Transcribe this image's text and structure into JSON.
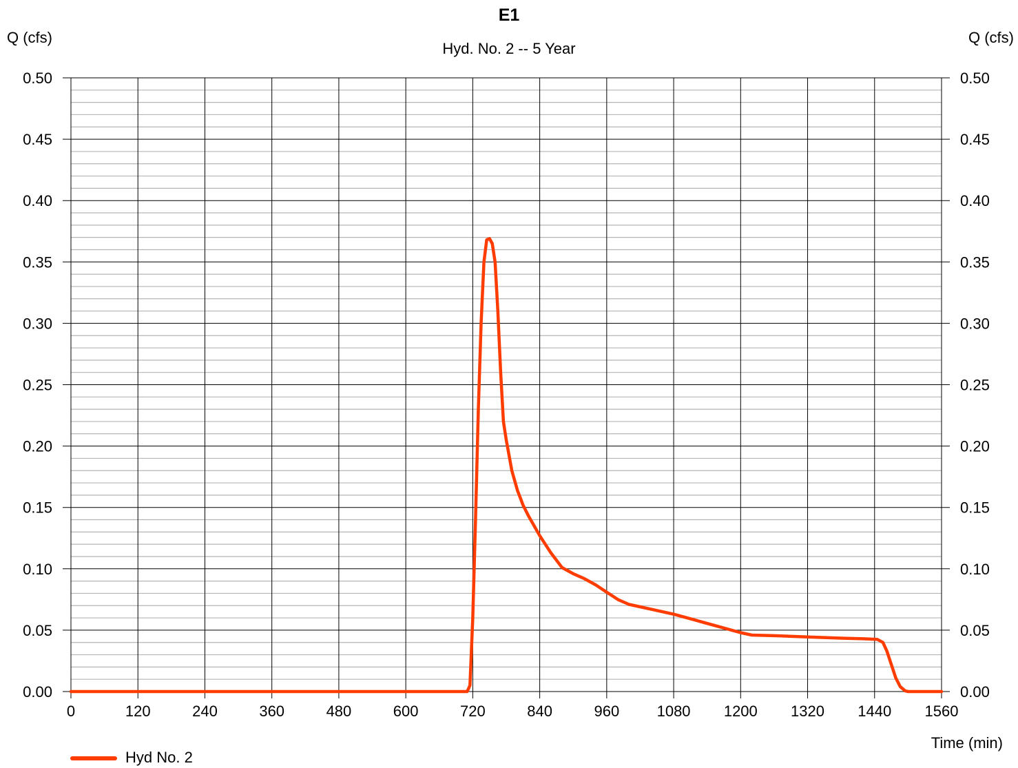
{
  "chart_data": {
    "type": "line",
    "title": "E1",
    "subtitle": "Hyd. No. 2 -- 5 Year",
    "ylabel_left": "Q (cfs)",
    "ylabel_right": "Q (cfs)",
    "xlabel": "Time (min)",
    "xlim": [
      0,
      1560
    ],
    "ylim": [
      0,
      0.5
    ],
    "x_ticks": [
      "0",
      "120",
      "240",
      "360",
      "480",
      "600",
      "720",
      "840",
      "960",
      "1080",
      "1200",
      "1320",
      "1440",
      "1560"
    ],
    "y_ticks": [
      "0.00",
      "0.05",
      "0.10",
      "0.15",
      "0.20",
      "0.25",
      "0.30",
      "0.35",
      "0.40",
      "0.45",
      "0.50"
    ],
    "grid": true,
    "legend_position": "bottom-left",
    "series": [
      {
        "name": "Hyd No. 2",
        "color": "#ff3c00",
        "points": [
          [
            0,
            0.0
          ],
          [
            710,
            0.0
          ],
          [
            715,
            0.005
          ],
          [
            720,
            0.06
          ],
          [
            725,
            0.14
          ],
          [
            730,
            0.23
          ],
          [
            735,
            0.3
          ],
          [
            740,
            0.35
          ],
          [
            745,
            0.368
          ],
          [
            750,
            0.369
          ],
          [
            755,
            0.365
          ],
          [
            760,
            0.35
          ],
          [
            765,
            0.31
          ],
          [
            770,
            0.26
          ],
          [
            775,
            0.22
          ],
          [
            780,
            0.205
          ],
          [
            790,
            0.18
          ],
          [
            800,
            0.164
          ],
          [
            810,
            0.152
          ],
          [
            820,
            0.143
          ],
          [
            840,
            0.127
          ],
          [
            860,
            0.113
          ],
          [
            880,
            0.101
          ],
          [
            900,
            0.096
          ],
          [
            920,
            0.092
          ],
          [
            940,
            0.087
          ],
          [
            960,
            0.081
          ],
          [
            980,
            0.075
          ],
          [
            1000,
            0.071
          ],
          [
            1040,
            0.067
          ],
          [
            1080,
            0.063
          ],
          [
            1120,
            0.058
          ],
          [
            1160,
            0.053
          ],
          [
            1200,
            0.048
          ],
          [
            1220,
            0.046
          ],
          [
            1260,
            0.0455
          ],
          [
            1320,
            0.0445
          ],
          [
            1380,
            0.0435
          ],
          [
            1420,
            0.043
          ],
          [
            1445,
            0.0425
          ],
          [
            1455,
            0.04
          ],
          [
            1462,
            0.033
          ],
          [
            1470,
            0.022
          ],
          [
            1478,
            0.011
          ],
          [
            1486,
            0.004
          ],
          [
            1495,
            0.0005
          ],
          [
            1500,
            0.0
          ],
          [
            1560,
            0.0
          ]
        ]
      }
    ]
  }
}
